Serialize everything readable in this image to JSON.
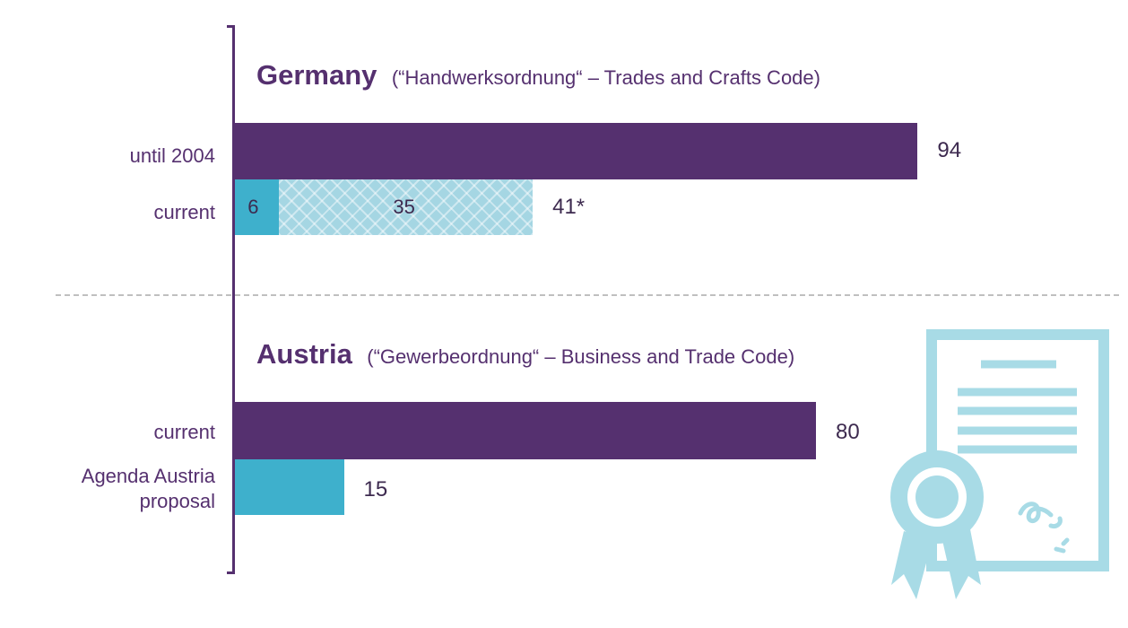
{
  "colors": {
    "primary": "#55306f",
    "segment": "#3eb0cc",
    "hatched": "#a5d6e3",
    "illustration": "#a8dbe6"
  },
  "chart_data": [
    {
      "type": "bar",
      "orientation": "horizontal",
      "title": "Germany",
      "subtitle": "(“Handwerksordnung“ – Trades and Crafts Code)",
      "categories": [
        "until 2004",
        "current"
      ],
      "series": [
        {
          "values": [
            94,
            6
          ]
        },
        {
          "values": [
            0,
            35
          ]
        }
      ],
      "total_labels": [
        "94",
        "41*"
      ],
      "segment_labels": [
        [
          "",
          ""
        ],
        [
          "6",
          "35"
        ]
      ],
      "xlim": [
        0,
        100
      ],
      "grid": false
    },
    {
      "type": "bar",
      "orientation": "horizontal",
      "title": "Austria",
      "subtitle": "(“Gewerbeordnung“ – Business and Trade Code)",
      "categories": [
        "current",
        "Agenda Austria proposal"
      ],
      "category_lines": [
        [
          "current"
        ],
        [
          "Agenda Austria",
          "proposal"
        ]
      ],
      "series": [
        {
          "values": [
            80,
            15
          ]
        }
      ],
      "total_labels": [
        "80",
        "15"
      ],
      "xlim": [
        0,
        100
      ],
      "grid": false
    }
  ],
  "illustration": {
    "icon": "certificate-with-rosette-icon"
  }
}
